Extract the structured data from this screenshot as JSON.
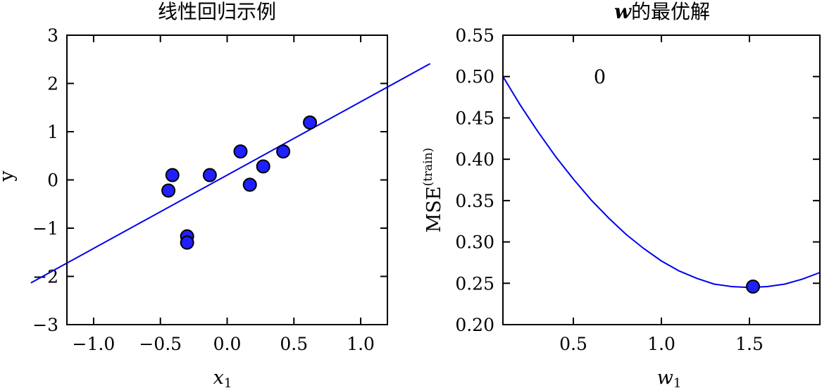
{
  "chart_data": [
    {
      "type": "scatter",
      "title": "线性回归示例",
      "xlabel": "x",
      "xlabel_subscript": "1",
      "ylabel": "y",
      "xlim": [
        -1.2,
        1.2
      ],
      "ylim": [
        -3,
        3
      ],
      "xticks": [
        -1.0,
        -0.5,
        0.0,
        0.5,
        1.0
      ],
      "xtick_labels": [
        "−1.0",
        "−0.5",
        "0.0",
        "0.5",
        "1.0"
      ],
      "yticks": [
        -3,
        -2,
        -1,
        0,
        1,
        2,
        3
      ],
      "ytick_labels": [
        "−3",
        "−2",
        "−1",
        "0",
        "1",
        "2",
        "3"
      ],
      "points": {
        "x": [
          -0.44,
          -0.41,
          -0.3,
          -0.3,
          -0.13,
          0.1,
          0.17,
          0.27,
          0.42,
          0.62
        ],
        "y": [
          -0.22,
          0.1,
          -1.17,
          -1.3,
          0.1,
          0.59,
          -0.1,
          0.28,
          0.59,
          1.19
        ]
      },
      "fit_line": {
        "slope": 1.52,
        "intercept": 0.1,
        "x_range": [
          -1.47,
          1.52
        ]
      },
      "colors": {
        "points": "#1f1fff",
        "line": "#0000ee"
      },
      "grid": false
    },
    {
      "type": "line",
      "title": "的最优解",
      "title_symbol": "w",
      "xlabel": "w",
      "xlabel_subscript": "1",
      "ylabel": "MSE",
      "ylabel_superscript": "(train)",
      "xlim": [
        0.1,
        1.9
      ],
      "ylim": [
        0.2,
        0.55
      ],
      "xticks": [
        0.5,
        1.0,
        1.5
      ],
      "xtick_labels": [
        "0.5",
        "1.0",
        "1.5"
      ],
      "yticks": [
        0.2,
        0.25,
        0.3,
        0.35,
        0.4,
        0.45,
        0.5,
        0.55
      ],
      "ytick_labels": [
        "0.20",
        "0.25",
        "0.30",
        "0.35",
        "0.40",
        "0.45",
        "0.50",
        "0.55"
      ],
      "curve": {
        "x": [
          0.1,
          0.2,
          0.3,
          0.4,
          0.5,
          0.6,
          0.7,
          0.8,
          0.9,
          1.0,
          1.1,
          1.2,
          1.3,
          1.4,
          1.5,
          1.6,
          1.7,
          1.8,
          1.9
        ],
        "y": [
          0.5,
          0.465,
          0.433,
          0.403,
          0.376,
          0.351,
          0.329,
          0.309,
          0.292,
          0.277,
          0.265,
          0.256,
          0.249,
          0.246,
          0.245,
          0.246,
          0.249,
          0.255,
          0.263
        ]
      },
      "minimum_point": {
        "x": 1.52,
        "y": 0.246
      },
      "annotation": "0",
      "annotation_pos": {
        "x": 0.65,
        "y": 0.5
      },
      "colors": {
        "points": "#1f1fff",
        "line": "#0000ee"
      },
      "grid": false
    }
  ]
}
